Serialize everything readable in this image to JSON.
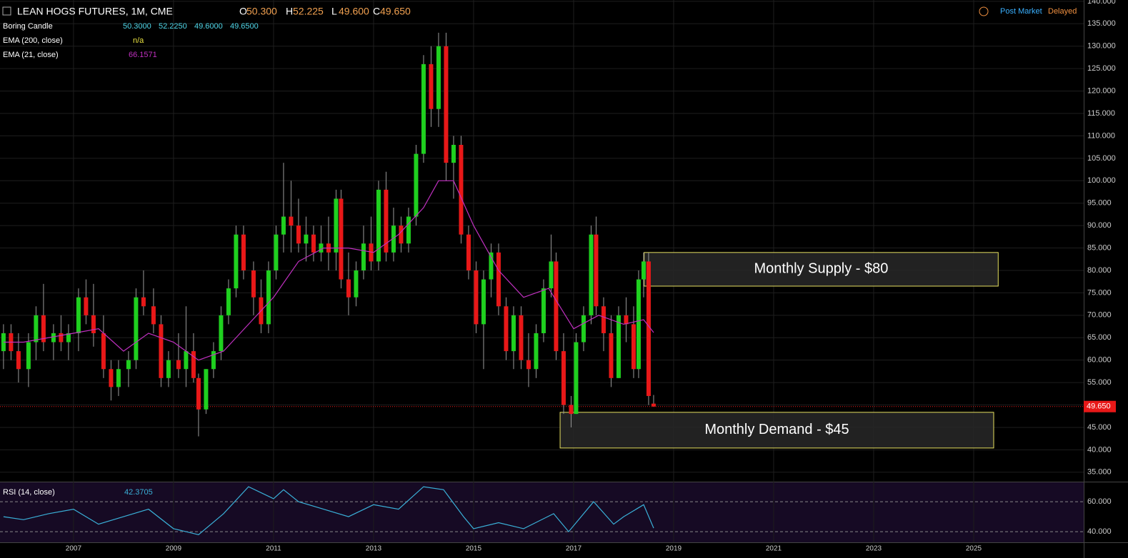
{
  "chart_data": [
    {
      "type": "candlestick",
      "title": "LEAN HOGS FUTURES, 1M, CME",
      "ohlc_legend": [
        {
          "label": "O",
          "value": "50.300"
        },
        {
          "label": "H",
          "value": "52.225"
        },
        {
          "label": "L",
          "value": "49.600"
        },
        {
          "label": "C",
          "value": "49.650"
        }
      ],
      "status": {
        "session": "Post Market",
        "delay": "Delayed"
      },
      "indicators": [
        {
          "name": "Boring Candle",
          "value_labels": [
            "50.3000",
            "52.2250",
            "49.6000",
            "49.6500"
          ],
          "color": "#4fd6e8"
        },
        {
          "name": "EMA (200, close)",
          "value_labels": [
            "n/a"
          ],
          "color": "#e8e040"
        }
      ],
      "x": [
        2005.6,
        2005.75,
        2005.9,
        2006.1,
        2006.25,
        2006.4,
        2006.6,
        2006.75,
        2006.9,
        2007.1,
        2007.25,
        2007.4,
        2007.6,
        2007.75,
        2007.9,
        2008.1,
        2008.25,
        2008.4,
        2008.6,
        2008.75,
        2008.9,
        2009.1,
        2009.25,
        2009.4,
        2009.5,
        2009.65,
        2009.8,
        2009.95,
        2010.1,
        2010.25,
        2010.4,
        2010.6,
        2010.75,
        2010.9,
        2011.05,
        2011.2,
        2011.35,
        2011.5,
        2011.65,
        2011.8,
        2011.95,
        2012.1,
        2012.25,
        2012.35,
        2012.5,
        2012.65,
        2012.8,
        2012.95,
        2013.1,
        2013.25,
        2013.4,
        2013.55,
        2013.7,
        2013.85,
        2014.0,
        2014.15,
        2014.3,
        2014.45,
        2014.6,
        2014.75,
        2014.9,
        2015.05,
        2015.2,
        2015.35,
        2015.5,
        2015.65,
        2015.8,
        2015.95,
        2016.1,
        2016.25,
        2016.4,
        2016.55,
        2016.65,
        2016.8,
        2016.95,
        2017.05,
        2017.2,
        2017.35,
        2017.45,
        2017.6,
        2017.75,
        2017.9,
        2018.05,
        2018.2,
        2018.3,
        2018.4,
        2018.5,
        2018.6
      ],
      "open": [
        62,
        66,
        62,
        58,
        64,
        70,
        64,
        66,
        64,
        66,
        74,
        70,
        66,
        58,
        54,
        58,
        60,
        74,
        72,
        68,
        56,
        60,
        58,
        62,
        56,
        49,
        58,
        62,
        70,
        76,
        88,
        80,
        74,
        68,
        80,
        88,
        92,
        90,
        86,
        88,
        84,
        86,
        84,
        96,
        78,
        74,
        80,
        86,
        82,
        98,
        84,
        90,
        86,
        92,
        106,
        126,
        116,
        130,
        104,
        108,
        88,
        80,
        68,
        78,
        84,
        72,
        62,
        70,
        60,
        58,
        66,
        76,
        82,
        62,
        50,
        48,
        64,
        70,
        88,
        72,
        66,
        56,
        70,
        68,
        58,
        78,
        82,
        50.3
      ],
      "high": [
        68,
        68,
        66,
        66,
        72,
        77,
        68,
        70,
        68,
        76,
        78,
        77,
        70,
        60,
        60,
        62,
        76,
        80,
        76,
        70,
        62,
        66,
        72,
        66,
        57,
        58,
        64,
        72,
        78,
        90,
        90,
        82,
        78,
        82,
        90,
        104,
        100,
        96,
        92,
        90,
        90,
        92,
        98,
        98,
        84,
        82,
        90,
        92,
        100,
        102,
        94,
        92,
        94,
        108,
        128,
        130,
        133,
        133,
        110,
        110,
        90,
        82,
        80,
        86,
        86,
        74,
        72,
        72,
        66,
        68,
        78,
        88,
        84,
        66,
        52,
        66,
        72,
        90,
        92,
        74,
        70,
        72,
        74,
        72,
        80,
        84,
        84,
        52.225
      ],
      "low": [
        58,
        60,
        55,
        54,
        60,
        62,
        60,
        62,
        60,
        62,
        68,
        63,
        56,
        51,
        52,
        54,
        58,
        70,
        66,
        54,
        54,
        56,
        54,
        55,
        43,
        48,
        56,
        60,
        68,
        74,
        78,
        70,
        66,
        66,
        78,
        84,
        84,
        84,
        82,
        82,
        82,
        80,
        80,
        76,
        70,
        72,
        78,
        80,
        80,
        82,
        82,
        84,
        84,
        90,
        104,
        112,
        112,
        100,
        96,
        86,
        78,
        66,
        58,
        74,
        70,
        60,
        58,
        58,
        54,
        56,
        64,
        74,
        60,
        48,
        45,
        48,
        62,
        68,
        70,
        62,
        54,
        56,
        64,
        56,
        56,
        74,
        50,
        49.6
      ],
      "close": [
        66,
        62,
        58,
        64,
        70,
        64,
        66,
        64,
        66,
        74,
        70,
        66,
        58,
        54,
        58,
        60,
        74,
        72,
        68,
        56,
        60,
        58,
        62,
        56,
        49,
        58,
        62,
        70,
        76,
        88,
        80,
        74,
        68,
        80,
        88,
        92,
        90,
        86,
        88,
        84,
        86,
        84,
        96,
        78,
        74,
        80,
        86,
        82,
        98,
        84,
        90,
        86,
        92,
        106,
        126,
        116,
        130,
        104,
        108,
        88,
        80,
        68,
        78,
        84,
        72,
        62,
        70,
        60,
        58,
        66,
        76,
        82,
        62,
        50,
        48,
        64,
        70,
        88,
        72,
        66,
        56,
        70,
        68,
        58,
        78,
        82,
        52,
        49.65
      ],
      "up_color": "#1fd01f",
      "down_color": "#e81818",
      "overlays": [
        {
          "name": "EMA (21, close)",
          "value_label": "66.1571",
          "color": "#c030c0",
          "x": [
            2005.6,
            2006,
            2007,
            2007.5,
            2008,
            2008.5,
            2009,
            2009.5,
            2010,
            2010.5,
            2011,
            2011.5,
            2012,
            2012.5,
            2013,
            2013.5,
            2014,
            2014.3,
            2014.6,
            2015,
            2015.5,
            2016,
            2016.5,
            2017,
            2017.5,
            2018,
            2018.4,
            2018.6
          ],
          "values": [
            64,
            64,
            66,
            67,
            62,
            66,
            64,
            60,
            62,
            68,
            74,
            82,
            85,
            85,
            84,
            88,
            94,
            100,
            100,
            90,
            80,
            74,
            76,
            67,
            70,
            68,
            69,
            66.16
          ]
        }
      ],
      "zones": [
        {
          "label": "Monthly Supply - $80",
          "from": 76.5,
          "to": 84.0,
          "x_from": 2018.41,
          "x_to": 2025.49
        },
        {
          "label": "Monthly Demand - $45",
          "from": 40.4,
          "to": 48.36,
          "x_from": 2016.73,
          "x_to": 2025.4
        }
      ],
      "last_price": {
        "value": 49.65,
        "label": "49.650"
      },
      "xlim": [
        2005.53,
        2027.2
      ],
      "ylim": [
        32.9,
        140.3
      ],
      "xticks": [
        2007,
        2009,
        2011,
        2013,
        2015,
        2017,
        2019,
        2021,
        2023,
        2025
      ],
      "yticks": [
        {
          "value": 35,
          "label": "35.000"
        },
        {
          "value": 40,
          "label": "40.000"
        },
        {
          "value": 45,
          "label": "45.000"
        },
        {
          "value": 50,
          "label": "50.000"
        },
        {
          "value": 55,
          "label": "55.000"
        },
        {
          "value": 60,
          "label": "60.000"
        },
        {
          "value": 65,
          "label": "65.000"
        },
        {
          "value": 70,
          "label": "70.000"
        },
        {
          "value": 75,
          "label": "75.000"
        },
        {
          "value": 80,
          "label": "80.000"
        },
        {
          "value": 85,
          "label": "85.000"
        },
        {
          "value": 90,
          "label": "90.000"
        },
        {
          "value": 95,
          "label": "95.000"
        },
        {
          "value": 100,
          "label": "100.000"
        },
        {
          "value": 105,
          "label": "105.000"
        },
        {
          "value": 110,
          "label": "110.000"
        },
        {
          "value": 115,
          "label": "115.000"
        },
        {
          "value": 120,
          "label": "120.000"
        },
        {
          "value": 125,
          "label": "125.000"
        },
        {
          "value": 130,
          "label": "130.000"
        },
        {
          "value": 135,
          "label": "135.000"
        },
        {
          "value": 140,
          "label": "140.000"
        }
      ],
      "grid": true
    },
    {
      "type": "line",
      "title": "RSI (14, close)",
      "value_label": "42.3705",
      "color": "#3ab0d8",
      "x": [
        2005.6,
        2006,
        2006.5,
        2007,
        2007.5,
        2008,
        2008.5,
        2009,
        2009.5,
        2010,
        2010.5,
        2011,
        2011.2,
        2011.5,
        2012,
        2012.5,
        2013,
        2013.5,
        2014,
        2014.4,
        2014.8,
        2015,
        2015.5,
        2016,
        2016.6,
        2016.9,
        2017.4,
        2017.8,
        2018,
        2018.4,
        2018.6
      ],
      "values": [
        50,
        48,
        52,
        55,
        45,
        50,
        55,
        42,
        38,
        52,
        70,
        62,
        68,
        60,
        55,
        50,
        58,
        55,
        70,
        68,
        50,
        42,
        46,
        42,
        52,
        40,
        60,
        45,
        50,
        58,
        42.37
      ],
      "xlim": [
        2005.53,
        2027.2
      ],
      "ylim": [
        32.9,
        72.9
      ],
      "yticks": [
        {
          "value": 40,
          "label": "40.000"
        },
        {
          "value": 60,
          "label": "60.000"
        }
      ]
    }
  ]
}
